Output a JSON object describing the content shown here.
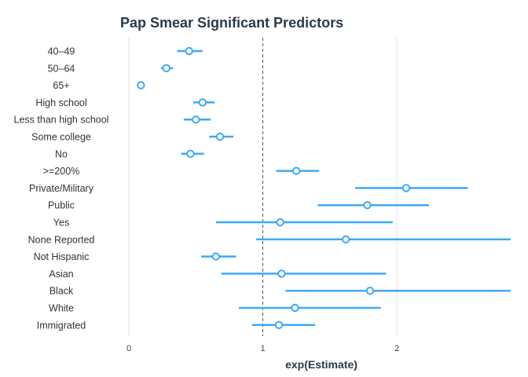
{
  "chart_data": {
    "type": "scatter",
    "subtype": "forest-plot",
    "title": "Pap Smear Significant Predictors",
    "xlabel": "exp(Estimate)",
    "ylabel": "",
    "xlim": [
      0,
      2.85
    ],
    "xticks": [
      0,
      1,
      2
    ],
    "reference_line": 1,
    "grid": "vertical",
    "legend": "none",
    "colors": {
      "point": "#3fa9f5",
      "reference": "#555555",
      "grid": "#e3e3e3"
    },
    "categories": [
      "40–49",
      "50–64",
      "65+",
      "High school",
      "Less than high school",
      "Some college",
      "No",
      ">=200%",
      "Private/Military",
      "Public",
      "Yes",
      "None Reported",
      "Not Hispanic",
      "Asian",
      "Black",
      "White",
      "Immigrated"
    ],
    "estimates": [
      0.45,
      0.28,
      0.09,
      0.55,
      0.5,
      0.68,
      0.46,
      1.25,
      2.07,
      1.78,
      1.13,
      1.62,
      0.65,
      1.14,
      1.8,
      1.24,
      1.12
    ],
    "ci_low": [
      0.36,
      0.24,
      0.09,
      0.48,
      0.41,
      0.6,
      0.39,
      1.1,
      1.69,
      1.41,
      0.65,
      0.95,
      0.54,
      0.69,
      1.17,
      0.82,
      0.92
    ],
    "ci_high": [
      0.55,
      0.33,
      0.09,
      0.64,
      0.61,
      0.78,
      0.56,
      1.42,
      2.53,
      2.24,
      1.97,
      2.85,
      0.8,
      1.92,
      2.85,
      1.88,
      1.39
    ]
  }
}
